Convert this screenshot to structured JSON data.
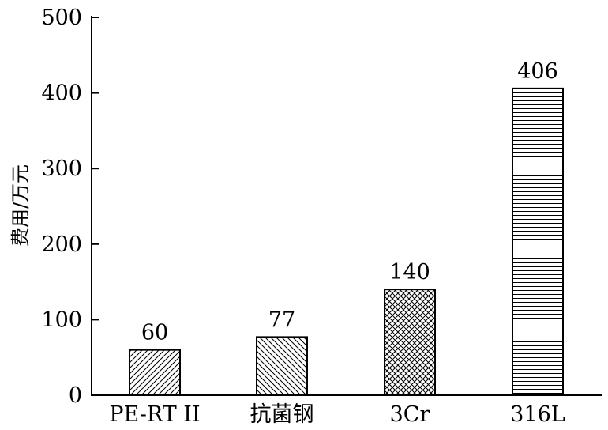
{
  "chart_data": {
    "type": "bar",
    "categories": [
      "PE-RT II",
      "抗菌钢",
      "3Cr",
      "316L"
    ],
    "values": [
      60,
      77,
      140,
      406
    ],
    "data_labels": [
      "60",
      "77",
      "140",
      "406"
    ],
    "patterns": [
      "diagonal-right",
      "diagonal-left",
      "crosshatch",
      "horizontal"
    ],
    "title": "",
    "xlabel": "",
    "ylabel": "费用/万元",
    "ylim": [
      0,
      500
    ],
    "yticks": [
      0,
      100,
      200,
      300,
      400,
      500
    ],
    "ytick_labels": [
      "0",
      "100",
      "200",
      "300",
      "400",
      "500"
    ],
    "grid": false,
    "colors": {
      "bar_stroke": "#000000",
      "pattern": "#000000",
      "background": "#ffffff"
    }
  }
}
